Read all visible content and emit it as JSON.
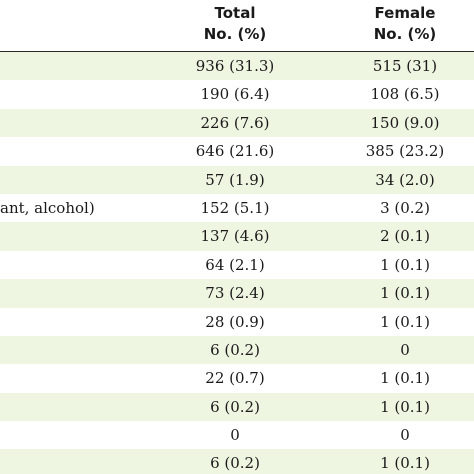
{
  "header": {
    "total_line1": "Total",
    "total_line2": "No. (%)",
    "female_line1": "Female",
    "female_line2": "No. (%)"
  },
  "rows": [
    {
      "label": "",
      "total": "936 (31.3)",
      "female": "515 (31)"
    },
    {
      "label": "",
      "total": "190 (6.4)",
      "female": "108 (6.5)"
    },
    {
      "label": "",
      "total": "226 (7.6)",
      "female": "150 (9.0)"
    },
    {
      "label": "",
      "total": "646 (21.6)",
      "female": "385 (23.2)"
    },
    {
      "label": "",
      "total": "57 (1.9)",
      "female": "34 (2.0)"
    },
    {
      "label": "ant, alcohol)",
      "total": "152 (5.1)",
      "female": "3 (0.2)"
    },
    {
      "label": "",
      "total": "137 (4.6)",
      "female": "2 (0.1)"
    },
    {
      "label": "",
      "total": "64 (2.1)",
      "female": "1 (0.1)"
    },
    {
      "label": "",
      "total": "73 (2.4)",
      "female": "1 (0.1)"
    },
    {
      "label": "",
      "total": "28 (0.9)",
      "female": "1 (0.1)"
    },
    {
      "label": "",
      "total": "6 (0.2)",
      "female": "0"
    },
    {
      "label": "",
      "total": "22 (0.7)",
      "female": "1 (0.1)"
    },
    {
      "label": "",
      "total": "6 (0.2)",
      "female": "1 (0.1)"
    },
    {
      "label": "",
      "total": "0",
      "female": "0"
    },
    {
      "label": "",
      "total": "6 (0.2)",
      "female": "1 (0.1)"
    }
  ]
}
